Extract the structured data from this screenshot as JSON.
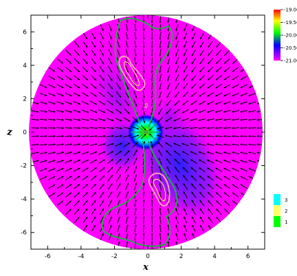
{
  "chart_data": {
    "type": "heatmap",
    "title": "",
    "xlabel": "x",
    "ylabel": "z",
    "xlim": [
      -7,
      7
    ],
    "ylim": [
      -7,
      7
    ],
    "x_ticks": [
      "-6",
      "-4",
      "-2",
      "0",
      "2",
      "4",
      "6"
    ],
    "y_ticks": [
      "6",
      "4",
      "2",
      "0",
      "-2",
      "-4",
      "-6"
    ],
    "field": {
      "domain": "disk",
      "radius": 7,
      "description": "log density field with velocity arrows overlaid",
      "colorbar_main": {
        "levels": [
          "-19.00",
          "-19.50",
          "-20.00",
          "-20.50",
          "-21.00"
        ],
        "colors": [
          "#ff0000",
          "#ffff00",
          "#00ff00",
          "#0000ff",
          "#ff00ff"
        ]
      },
      "colorbar_contours": {
        "levels": [
          "3",
          "2",
          "1"
        ],
        "colors": [
          "#00ffff",
          "#ffff66",
          "#00ff00"
        ]
      }
    },
    "contours": [
      {
        "name": "green",
        "color": "#22aa44"
      },
      {
        "name": "pink",
        "color": "#ff9fbf"
      },
      {
        "name": "yellow",
        "color": "#ffff66"
      }
    ]
  }
}
